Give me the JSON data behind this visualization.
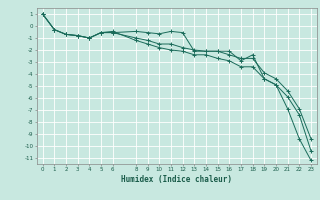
{
  "xlabel": "Humidex (Indice chaleur)",
  "bg_color": "#c8e8e0",
  "grid_color": "#ffffff",
  "line_color": "#1a6b5a",
  "xlim": [
    -0.5,
    23.5
  ],
  "ylim": [
    -11.5,
    1.5
  ],
  "xticks": [
    0,
    1,
    2,
    3,
    4,
    5,
    6,
    8,
    9,
    10,
    11,
    12,
    13,
    14,
    15,
    16,
    17,
    18,
    19,
    20,
    21,
    22,
    23
  ],
  "yticks": [
    1,
    0,
    -1,
    -2,
    -3,
    -4,
    -5,
    -6,
    -7,
    -8,
    -9,
    -10,
    -11
  ],
  "series": [
    {
      "x": [
        0,
        1,
        2,
        3,
        4,
        5,
        6,
        8,
        9,
        10,
        11,
        12,
        13,
        14,
        15,
        16,
        17,
        18,
        19,
        20,
        21,
        22,
        23
      ],
      "y": [
        1,
        -0.3,
        -0.7,
        -0.8,
        -1.0,
        -0.55,
        -0.55,
        -0.45,
        -0.55,
        -0.65,
        -0.45,
        -0.55,
        -2.1,
        -2.1,
        -2.1,
        -2.1,
        -2.9,
        -2.4,
        -4.4,
        -4.9,
        -6.9,
        -9.4,
        -11.2
      ]
    },
    {
      "x": [
        0,
        1,
        2,
        3,
        4,
        5,
        6,
        8,
        9,
        10,
        11,
        12,
        13,
        14,
        15,
        16,
        17,
        18,
        19,
        20,
        21,
        22,
        23
      ],
      "y": [
        1,
        -0.3,
        -0.7,
        -0.8,
        -1.0,
        -0.55,
        -0.55,
        -1.0,
        -1.2,
        -1.5,
        -1.5,
        -1.8,
        -2.0,
        -2.1,
        -2.1,
        -2.4,
        -2.7,
        -2.7,
        -3.9,
        -4.4,
        -5.4,
        -6.9,
        -9.4
      ]
    },
    {
      "x": [
        0,
        1,
        2,
        3,
        4,
        5,
        6,
        8,
        9,
        10,
        11,
        12,
        13,
        14,
        15,
        16,
        17,
        18,
        19,
        20,
        21,
        22,
        23
      ],
      "y": [
        1,
        -0.3,
        -0.7,
        -0.8,
        -1.0,
        -0.55,
        -0.45,
        -1.2,
        -1.5,
        -1.8,
        -2.0,
        -2.1,
        -2.4,
        -2.4,
        -2.7,
        -2.9,
        -3.4,
        -3.4,
        -4.4,
        -4.9,
        -5.9,
        -7.4,
        -10.4
      ]
    }
  ]
}
